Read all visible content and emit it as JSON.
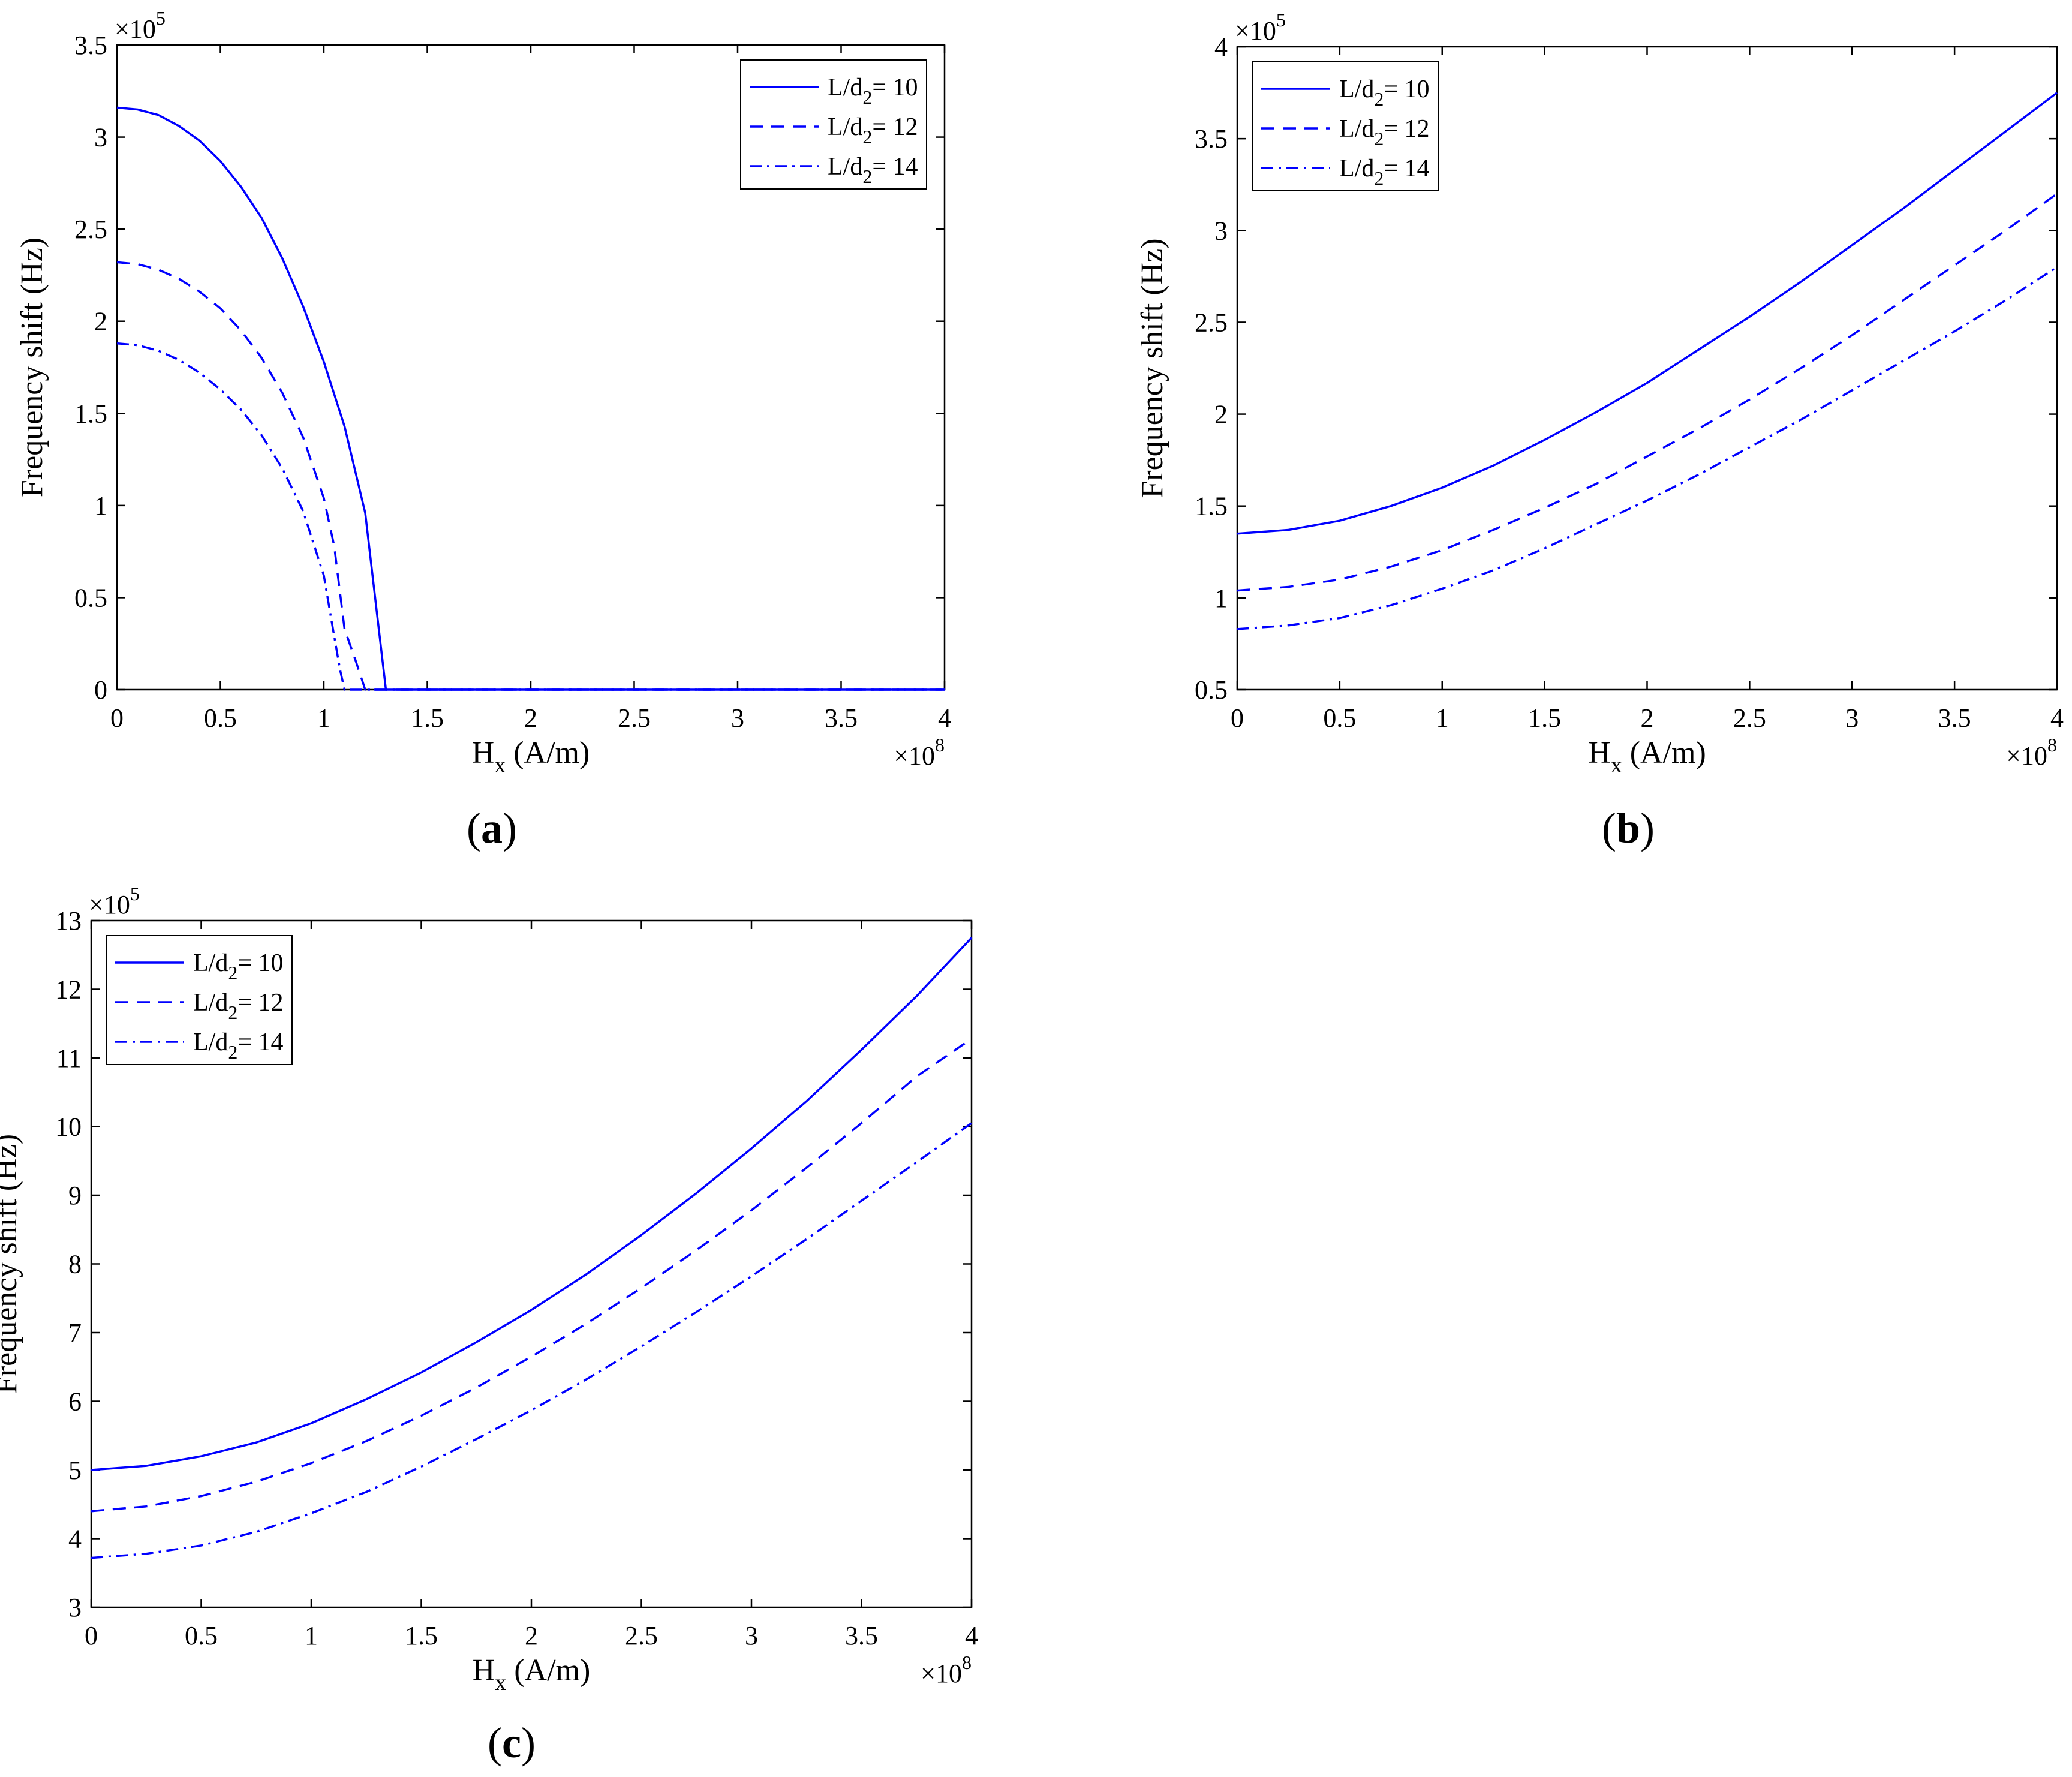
{
  "colors": {
    "line": "#0000FF",
    "axis": "#000000",
    "background": "#FFFFFF"
  },
  "chart_data": [
    {
      "panel": "a",
      "type": "line",
      "xlabel_main": "H",
      "xlabel_sub": "x",
      "xlabel_unit": " (A/m)",
      "ylabel": "Frequency shift (Hz)",
      "x_multiplier_base": "×10",
      "x_multiplier_exp": "8",
      "y_multiplier_base": "×10",
      "y_multiplier_exp": "5",
      "xlim": [
        0,
        4
      ],
      "ylim": [
        0,
        3.5
      ],
      "xticks": [
        0,
        0.5,
        1,
        1.5,
        2,
        2.5,
        3,
        3.5,
        4
      ],
      "xtick_labels": [
        "0",
        "0.5",
        "1",
        "1.5",
        "2",
        "2.5",
        "3",
        "3.5",
        "4"
      ],
      "yticks": [
        0,
        0.5,
        1,
        1.5,
        2,
        2.5,
        3,
        3.5
      ],
      "ytick_labels": [
        "0",
        "0.5",
        "1",
        "1.5",
        "2",
        "2.5",
        "3",
        "3.5"
      ],
      "legend_position": "top-right",
      "series": [
        {
          "name_prefix": "L/d",
          "name_sub": "2",
          "name_suffix": "= 10",
          "style": "solid",
          "x": [
            0,
            0.1,
            0.2,
            0.3,
            0.4,
            0.5,
            0.6,
            0.7,
            0.8,
            0.9,
            1.0,
            1.1,
            1.2,
            1.3,
            2,
            3,
            4
          ],
          "y": [
            3.16,
            3.15,
            3.12,
            3.06,
            2.98,
            2.87,
            2.73,
            2.56,
            2.34,
            2.08,
            1.78,
            1.43,
            0.96,
            0,
            0,
            0,
            0
          ]
        },
        {
          "name_prefix": "L/d",
          "name_sub": "2",
          "name_suffix": "= 12",
          "style": "dashed",
          "x": [
            0,
            0.1,
            0.2,
            0.3,
            0.4,
            0.5,
            0.6,
            0.7,
            0.8,
            0.9,
            1.0,
            1.05,
            1.1,
            1.15,
            1.2,
            2,
            3,
            4
          ],
          "y": [
            2.32,
            2.31,
            2.28,
            2.23,
            2.16,
            2.07,
            1.95,
            1.8,
            1.61,
            1.37,
            1.04,
            0.78,
            0.33,
            0.17,
            0,
            0,
            0,
            0
          ]
        },
        {
          "name_prefix": "L/d",
          "name_sub": "2",
          "name_suffix": "= 14",
          "style": "dashdot",
          "x": [
            0,
            0.1,
            0.2,
            0.3,
            0.4,
            0.5,
            0.6,
            0.7,
            0.8,
            0.9,
            1.0,
            1.05,
            1.08,
            1.1,
            2,
            3,
            4
          ],
          "y": [
            1.88,
            1.87,
            1.84,
            1.79,
            1.72,
            1.63,
            1.52,
            1.38,
            1.2,
            0.97,
            0.62,
            0.29,
            0.1,
            0,
            0,
            0,
            0
          ]
        }
      ]
    },
    {
      "panel": "b",
      "type": "line",
      "xlabel_main": "H",
      "xlabel_sub": "x",
      "xlabel_unit": " (A/m)",
      "ylabel": "Frequency shift (Hz)",
      "x_multiplier_base": "×10",
      "x_multiplier_exp": "8",
      "y_multiplier_base": "×10",
      "y_multiplier_exp": "5",
      "xlim": [
        0,
        4
      ],
      "ylim": [
        0.5,
        4
      ],
      "xticks": [
        0,
        0.5,
        1,
        1.5,
        2,
        2.5,
        3,
        3.5,
        4
      ],
      "xtick_labels": [
        "0",
        "0.5",
        "1",
        "1.5",
        "2",
        "2.5",
        "3",
        "3.5",
        "4"
      ],
      "yticks": [
        0.5,
        1,
        1.5,
        2,
        2.5,
        3,
        3.5,
        4
      ],
      "ytick_labels": [
        "0.5",
        "1",
        "1.5",
        "2",
        "2.5",
        "3",
        "3.5",
        "4"
      ],
      "legend_position": "top-left",
      "series": [
        {
          "name_prefix": "L/d",
          "name_sub": "2",
          "name_suffix": "= 10",
          "style": "solid",
          "x": [
            0,
            0.25,
            0.5,
            0.75,
            1,
            1.25,
            1.5,
            1.75,
            2,
            2.25,
            2.5,
            2.75,
            3,
            3.25,
            3.5,
            3.75,
            4
          ],
          "y": [
            1.35,
            1.37,
            1.42,
            1.5,
            1.6,
            1.72,
            1.86,
            2.01,
            2.17,
            2.35,
            2.53,
            2.72,
            2.92,
            3.12,
            3.33,
            3.54,
            3.75
          ]
        },
        {
          "name_prefix": "L/d",
          "name_sub": "2",
          "name_suffix": "= 12",
          "style": "dashed",
          "x": [
            0,
            0.25,
            0.5,
            0.75,
            1,
            1.25,
            1.5,
            1.75,
            2,
            2.25,
            2.5,
            2.75,
            3,
            3.25,
            3.5,
            3.75,
            4
          ],
          "y": [
            1.04,
            1.06,
            1.1,
            1.17,
            1.26,
            1.37,
            1.49,
            1.62,
            1.77,
            1.92,
            2.08,
            2.25,
            2.43,
            2.62,
            2.81,
            3.0,
            3.2
          ]
        },
        {
          "name_prefix": "L/d",
          "name_sub": "2",
          "name_suffix": "= 14",
          "style": "dashdot",
          "x": [
            0,
            0.25,
            0.5,
            0.75,
            1,
            1.25,
            1.5,
            1.75,
            2,
            2.25,
            2.5,
            2.75,
            3,
            3.25,
            3.5,
            3.75,
            4
          ],
          "y": [
            0.83,
            0.85,
            0.89,
            0.96,
            1.05,
            1.15,
            1.27,
            1.4,
            1.53,
            1.67,
            1.82,
            1.97,
            2.13,
            2.29,
            2.45,
            2.62,
            2.8
          ]
        }
      ]
    },
    {
      "panel": "c",
      "type": "line",
      "xlabel_main": "H",
      "xlabel_sub": "x",
      "xlabel_unit": " (A/m)",
      "ylabel": "Frequency shift (Hz)",
      "x_multiplier_base": "×10",
      "x_multiplier_exp": "8",
      "y_multiplier_base": "×10",
      "y_multiplier_exp": "5",
      "xlim": [
        0,
        4
      ],
      "ylim": [
        3,
        13
      ],
      "xticks": [
        0,
        0.5,
        1,
        1.5,
        2,
        2.5,
        3,
        3.5,
        4
      ],
      "xtick_labels": [
        "0",
        "0.5",
        "1",
        "1.5",
        "2",
        "2.5",
        "3",
        "3.5",
        "4"
      ],
      "yticks": [
        3,
        4,
        5,
        6,
        7,
        8,
        9,
        10,
        11,
        12,
        13
      ],
      "ytick_labels": [
        "3",
        "4",
        "5",
        "6",
        "7",
        "8",
        "9",
        "10",
        "11",
        "12",
        "13"
      ],
      "legend_position": "top-left",
      "series": [
        {
          "name_prefix": "L/d",
          "name_sub": "2",
          "name_suffix": "= 10",
          "style": "solid",
          "x": [
            0,
            0.25,
            0.5,
            0.75,
            1,
            1.25,
            1.5,
            1.75,
            2,
            2.25,
            2.5,
            2.75,
            3,
            3.25,
            3.5,
            3.75,
            4
          ],
          "y": [
            5.0,
            5.06,
            5.2,
            5.4,
            5.68,
            6.03,
            6.42,
            6.86,
            7.33,
            7.85,
            8.42,
            9.03,
            9.68,
            10.37,
            11.12,
            11.9,
            12.75
          ]
        },
        {
          "name_prefix": "L/d",
          "name_sub": "2",
          "name_suffix": "= 12",
          "style": "dashed",
          "x": [
            0,
            0.25,
            0.5,
            0.75,
            1,
            1.25,
            1.5,
            1.75,
            2,
            2.25,
            2.5,
            2.75,
            3,
            3.25,
            3.5,
            3.75,
            4
          ],
          "y": [
            4.4,
            4.47,
            4.62,
            4.83,
            5.1,
            5.42,
            5.79,
            6.2,
            6.65,
            7.13,
            7.65,
            8.2,
            8.78,
            9.4,
            10.05,
            10.73,
            11.28
          ]
        },
        {
          "name_prefix": "L/d",
          "name_sub": "2",
          "name_suffix": "= 14",
          "style": "dashdot",
          "x": [
            0,
            0.25,
            0.5,
            0.75,
            1,
            1.25,
            1.5,
            1.75,
            2,
            2.25,
            2.5,
            2.75,
            3,
            3.25,
            3.5,
            3.75,
            4
          ],
          "y": [
            3.72,
            3.78,
            3.9,
            4.1,
            4.37,
            4.68,
            5.05,
            5.45,
            5.87,
            6.32,
            6.8,
            7.3,
            7.82,
            8.36,
            8.92,
            9.48,
            10.05
          ]
        }
      ]
    }
  ]
}
